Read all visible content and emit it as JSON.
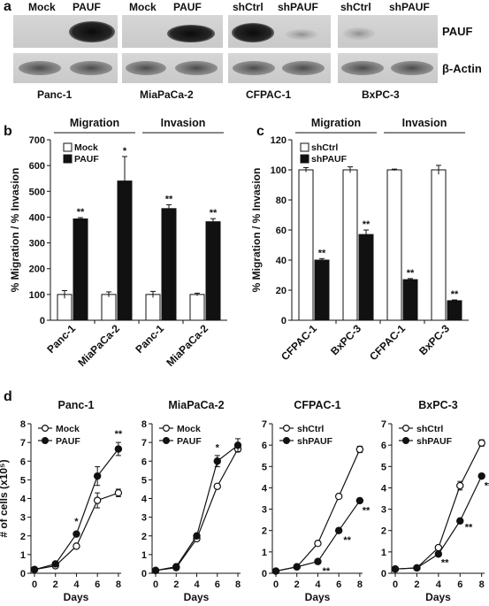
{
  "panel_labels": {
    "a": "a",
    "b": "b",
    "c": "c",
    "d": "d"
  },
  "blot": {
    "lanes": [
      {
        "id": "g1",
        "labels": [
          "Mock",
          "PAUF"
        ],
        "cell": "Panc-1"
      },
      {
        "id": "g2",
        "labels": [
          "Mock",
          "PAUF"
        ],
        "cell": "MiaPaCa-2"
      },
      {
        "id": "g3",
        "labels": [
          "shCtrl",
          "shPAUF"
        ],
        "cell": "CFPAC-1"
      },
      {
        "id": "g4",
        "labels": [
          "shCtrl",
          "shPAUF"
        ],
        "cell": "BxPC-3"
      }
    ],
    "rows": [
      "PAUF",
      "β-Actin"
    ]
  },
  "chart_data": [
    {
      "id": "b",
      "type": "bar",
      "ylabel": "% Migration / % Invasion",
      "ylim": [
        0,
        700
      ],
      "yticks": [
        0,
        100,
        200,
        300,
        400,
        500,
        600,
        700
      ],
      "groups": [
        {
          "label": "Migration"
        },
        {
          "label": "Invasion"
        }
      ],
      "categories": [
        "Panc-1",
        "MiaPaCa-2",
        "Panc-1",
        "MiaPaCa-2"
      ],
      "series": [
        {
          "name": "Mock",
          "values": [
            100,
            100,
            100,
            100
          ],
          "err": [
            15,
            10,
            12,
            5
          ],
          "fill": "#ffffff"
        },
        {
          "name": "PAUF",
          "values": [
            393,
            540,
            433,
            382
          ],
          "err": [
            5,
            95,
            15,
            12
          ],
          "fill": "#111111"
        }
      ],
      "sig": [
        [
          "",
          "**"
        ],
        [
          "",
          "*"
        ],
        [
          "",
          "**"
        ],
        [
          "",
          "**"
        ]
      ]
    },
    {
      "id": "c",
      "type": "bar",
      "ylabel": "% Migration / % Invasion",
      "ylim": [
        0,
        120
      ],
      "yticks": [
        0,
        20,
        40,
        60,
        80,
        100,
        120
      ],
      "groups": [
        {
          "label": "Migration"
        },
        {
          "label": "Invasion"
        }
      ],
      "categories": [
        "CFPAC-1",
        "BxPC-3",
        "CFPAC-1",
        "BxPC-3"
      ],
      "series": [
        {
          "name": "shCtrl",
          "values": [
            100,
            100,
            100,
            100
          ],
          "err": [
            1.5,
            2,
            0.5,
            3
          ],
          "fill": "#ffffff"
        },
        {
          "name": "shPAUF",
          "values": [
            40,
            57,
            27,
            13
          ],
          "err": [
            1,
            3,
            0.7,
            0.5
          ],
          "fill": "#111111"
        }
      ],
      "sig": [
        [
          "",
          "**"
        ],
        [
          "",
          "**"
        ],
        [
          "",
          "**"
        ],
        [
          "",
          "**"
        ]
      ]
    },
    {
      "id": "d1",
      "type": "line",
      "title": "Panc-1",
      "ylabel": "# of cells (x10⁵)",
      "xlabel": "Days",
      "x": [
        0,
        2,
        4,
        6,
        8
      ],
      "xticks": [
        0,
        2,
        4,
        6,
        8
      ],
      "ylim": [
        0,
        8
      ],
      "yticks": [
        0,
        1,
        2,
        3,
        4,
        5,
        6,
        7,
        8
      ],
      "series": [
        {
          "name": "Mock",
          "values": [
            0.2,
            0.4,
            1.45,
            3.9,
            4.3
          ],
          "err": [
            0,
            0.05,
            0.1,
            0.4,
            0.2
          ]
        },
        {
          "name": "PAUF",
          "values": [
            0.2,
            0.5,
            2.1,
            5.2,
            6.65
          ],
          "err": [
            0,
            0.05,
            0.1,
            0.5,
            0.35
          ]
        }
      ],
      "sig": [
        {
          "x": 4,
          "y": 2.6,
          "t": "*"
        },
        {
          "x": 8,
          "y": 7.3,
          "t": "**"
        }
      ]
    },
    {
      "id": "d2",
      "type": "line",
      "title": "MiaPaCa-2",
      "xlabel": "Days",
      "x": [
        0,
        2,
        4,
        6,
        8
      ],
      "xticks": [
        0,
        2,
        4,
        6,
        8
      ],
      "ylim": [
        0,
        8
      ],
      "yticks": [
        0,
        1,
        2,
        3,
        4,
        5,
        6,
        7,
        8
      ],
      "series": [
        {
          "name": "Mock",
          "values": [
            0.15,
            0.3,
            1.85,
            4.65,
            6.65
          ],
          "err": [
            0,
            0.05,
            0.1,
            0.1,
            0.15
          ]
        },
        {
          "name": "PAUF",
          "values": [
            0.15,
            0.35,
            2.0,
            6.0,
            6.85
          ],
          "err": [
            0,
            0.05,
            0.1,
            0.3,
            0.35
          ]
        }
      ],
      "sig": [
        {
          "x": 6,
          "y": 6.55,
          "t": "*"
        }
      ]
    },
    {
      "id": "d3",
      "type": "line",
      "title": "CFPAC-1",
      "xlabel": "Days",
      "x": [
        0,
        2,
        4,
        6,
        8
      ],
      "xticks": [
        0,
        2,
        4,
        6,
        8
      ],
      "ylim": [
        0,
        7
      ],
      "yticks": [
        0,
        1,
        2,
        3,
        4,
        5,
        6,
        7
      ],
      "series": [
        {
          "name": "shCtrl",
          "values": [
            0.1,
            0.3,
            1.4,
            3.6,
            5.8
          ],
          "err": [
            0,
            0.03,
            0.05,
            0.05,
            0.15
          ]
        },
        {
          "name": "shPAUF",
          "values": [
            0.1,
            0.3,
            0.55,
            2.0,
            3.4
          ],
          "err": [
            0,
            0.03,
            0.05,
            0.05,
            0.05
          ]
        }
      ],
      "sig": [
        {
          "x": 4.8,
          "y": -0.05,
          "t": "**"
        },
        {
          "x": 6.8,
          "y": 1.4,
          "t": "**"
        },
        {
          "x": 8.6,
          "y": 2.8,
          "t": "**"
        }
      ]
    },
    {
      "id": "d4",
      "type": "line",
      "title": "BxPC-3",
      "xlabel": "Days",
      "x": [
        0,
        2,
        4,
        6,
        8
      ],
      "xticks": [
        0,
        2,
        4,
        6,
        8
      ],
      "ylim": [
        0,
        7
      ],
      "yticks": [
        0,
        1,
        2,
        3,
        4,
        5,
        6,
        7
      ],
      "series": [
        {
          "name": "shCtrl",
          "values": [
            0.2,
            0.25,
            1.2,
            4.1,
            6.1
          ],
          "err": [
            0,
            0.03,
            0.05,
            0.2,
            0.15
          ]
        },
        {
          "name": "shPAUF",
          "values": [
            0.2,
            0.25,
            0.9,
            2.45,
            4.55
          ],
          "err": [
            0,
            0.03,
            0.05,
            0.05,
            0.1
          ]
        }
      ],
      "sig": [
        {
          "x": 4.6,
          "y": 0.35,
          "t": "**"
        },
        {
          "x": 6.8,
          "y": 2.0,
          "t": "**"
        },
        {
          "x": 8.6,
          "y": 3.95,
          "t": "**"
        }
      ]
    }
  ]
}
